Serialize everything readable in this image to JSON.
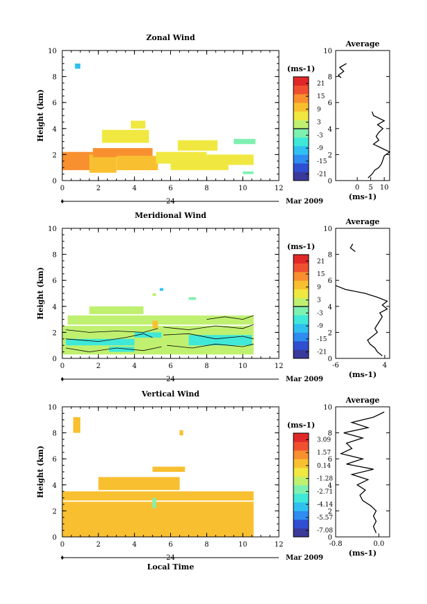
{
  "figure": {
    "month_label": "Mar 2009",
    "day_label": "24",
    "xlabel_bottom": "Local Time",
    "units": "(ms-1)"
  },
  "colors": {
    "scale": [
      "#3a3a9a",
      "#2f4fd0",
      "#2f8cf0",
      "#30c0f0",
      "#40e8d8",
      "#7ef0b0",
      "#c0f070",
      "#f0e840",
      "#f8c030",
      "#f89030",
      "#f05030",
      "#e02828"
    ],
    "line": "#000000"
  },
  "chart_data": [
    {
      "type": "heatmap",
      "title": "Zonal Wind",
      "ylabel": "Height (km)",
      "xlim": [
        0,
        12
      ],
      "ylim": [
        0,
        10
      ],
      "xticks": [
        0,
        2,
        4,
        6,
        8,
        10,
        12
      ],
      "yticks": [
        0,
        2,
        4,
        6,
        8,
        10
      ],
      "colorbar": {
        "label": "(ms-1)",
        "ticks": [
          "21",
          "15",
          "9",
          "3",
          "-3",
          "-9",
          "-15",
          "-21"
        ],
        "vmin": -24,
        "vmax": 24,
        "zero_line": 0
      },
      "patches": [
        {
          "x0": 0.7,
          "x1": 1.0,
          "y0": 8.6,
          "y1": 9.0,
          "v": -10
        },
        {
          "x0": 0.0,
          "x1": 2.0,
          "y0": 0.8,
          "y1": 2.2,
          "v": 12
        },
        {
          "x0": 1.5,
          "x1": 3.0,
          "y0": 0.6,
          "y1": 2.0,
          "v": 10
        },
        {
          "x0": 1.7,
          "x1": 5.0,
          "y0": 1.8,
          "y1": 2.5,
          "v": 14
        },
        {
          "x0": 3.0,
          "x1": 5.3,
          "y0": 0.8,
          "y1": 1.9,
          "v": 9
        },
        {
          "x0": 2.2,
          "x1": 4.8,
          "y0": 2.9,
          "y1": 3.9,
          "v": 6
        },
        {
          "x0": 5.2,
          "x1": 8.0,
          "y0": 1.3,
          "y1": 2.2,
          "v": 6
        },
        {
          "x0": 6.0,
          "x1": 9.2,
          "y0": 0.8,
          "y1": 1.6,
          "v": 5
        },
        {
          "x0": 8.0,
          "x1": 10.6,
          "y0": 1.2,
          "y1": 2.0,
          "v": 4
        },
        {
          "x0": 6.4,
          "x1": 8.6,
          "y0": 2.3,
          "y1": 3.1,
          "v": 5
        },
        {
          "x0": 9.5,
          "x1": 10.7,
          "y0": 2.8,
          "y1": 3.2,
          "v": -2
        },
        {
          "x0": 3.8,
          "x1": 4.6,
          "y0": 4.0,
          "y1": 4.6,
          "v": 6
        },
        {
          "x0": 10.0,
          "x1": 10.6,
          "y0": 0.5,
          "y1": 0.7,
          "v": -3
        }
      ],
      "average_profile": {
        "title": "Average",
        "xlabel": "(ms-1)",
        "xlim": [
          -8,
          12
        ],
        "xticks": [
          0,
          5,
          10
        ],
        "ylim": [
          0,
          10
        ],
        "z": [
          0.2,
          0.5,
          0.8,
          1.0,
          1.3,
          1.6,
          1.9,
          2.2,
          2.5,
          2.8,
          3.1,
          3.4,
          3.7,
          4.0,
          4.3,
          4.6,
          5.0,
          5.3,
          7.9,
          8.1,
          8.4,
          8.7,
          9.0
        ],
        "u": [
          4.0,
          5.5,
          6.5,
          8.0,
          9.0,
          9.5,
          10.0,
          12.0,
          9.0,
          6.0,
          8.0,
          7.0,
          8.0,
          9.5,
          7.5,
          10.0,
          6.0,
          5.5,
          -6.0,
          -7.0,
          -5.0,
          -6.5,
          -4.0
        ]
      }
    },
    {
      "type": "heatmap",
      "title": "Meridional Wind",
      "ylabel": "Height (km)",
      "xlim": [
        0,
        12
      ],
      "ylim": [
        0,
        10
      ],
      "xticks": [
        0,
        2,
        4,
        6,
        8,
        10,
        12
      ],
      "yticks": [
        0,
        2,
        4,
        6,
        8,
        10
      ],
      "colorbar": {
        "label": "(ms-1)",
        "ticks": [
          "21",
          "15",
          "9",
          "3",
          "-3",
          "-9",
          "-15",
          "-21"
        ],
        "vmin": -24,
        "vmax": 24,
        "zero_line": 0
      },
      "patches": [
        {
          "x0": 0.0,
          "x1": 10.6,
          "y0": 0.3,
          "y1": 2.5,
          "v": 2
        },
        {
          "x0": 0.3,
          "x1": 10.6,
          "y0": 2.6,
          "y1": 3.3,
          "v": 3
        },
        {
          "x0": 1.5,
          "x1": 4.5,
          "y0": 3.4,
          "y1": 4.0,
          "v": 3
        },
        {
          "x0": 0.2,
          "x1": 4.0,
          "y0": 1.0,
          "y1": 1.5,
          "v": -6
        },
        {
          "x0": 4.0,
          "x1": 5.5,
          "y0": 1.6,
          "y1": 2.0,
          "v": -8
        },
        {
          "x0": 7.0,
          "x1": 10.5,
          "y0": 1.0,
          "y1": 1.8,
          "v": -8
        },
        {
          "x0": 2.6,
          "x1": 4.0,
          "y0": 0.5,
          "y1": 0.9,
          "v": -5
        },
        {
          "x0": 5.0,
          "x1": 5.3,
          "y0": 2.3,
          "y1": 2.9,
          "v": 10
        },
        {
          "x0": 5.4,
          "x1": 5.6,
          "y0": 5.2,
          "y1": 5.4,
          "v": -10
        },
        {
          "x0": 5.0,
          "x1": 5.2,
          "y0": 4.8,
          "y1": 5.0,
          "v": 3
        },
        {
          "x0": 7.0,
          "x1": 7.4,
          "y0": 4.5,
          "y1": 4.7,
          "v": -2
        }
      ],
      "contours": [
        [
          [
            0.2,
            2.2
          ],
          [
            1.5,
            2.0
          ],
          [
            3.0,
            2.1
          ],
          [
            4.5,
            2.0
          ],
          [
            5.3,
            2.3
          ]
        ],
        [
          [
            0.2,
            1.5
          ],
          [
            2.0,
            1.3
          ],
          [
            3.5,
            1.6
          ],
          [
            4.5,
            1.9
          ],
          [
            5.0,
            1.6
          ]
        ],
        [
          [
            0.2,
            0.8
          ],
          [
            1.5,
            0.5
          ],
          [
            3.0,
            0.8
          ],
          [
            4.5,
            0.6
          ],
          [
            5.5,
            0.9
          ]
        ],
        [
          [
            5.6,
            2.4
          ],
          [
            7.0,
            2.2
          ],
          [
            8.5,
            2.5
          ],
          [
            10.0,
            2.3
          ],
          [
            10.6,
            2.6
          ]
        ],
        [
          [
            5.6,
            1.8
          ],
          [
            7.0,
            1.9
          ],
          [
            8.5,
            1.5
          ],
          [
            10.0,
            1.7
          ],
          [
            10.6,
            1.5
          ]
        ],
        [
          [
            5.8,
            1.0
          ],
          [
            7.2,
            0.8
          ],
          [
            8.5,
            1.1
          ],
          [
            10.0,
            0.9
          ],
          [
            10.6,
            1.1
          ]
        ],
        [
          [
            8.0,
            3.0
          ],
          [
            9.0,
            3.2
          ],
          [
            10.0,
            3.0
          ],
          [
            10.6,
            3.3
          ]
        ]
      ],
      "average_profile": {
        "title": "Average",
        "xlabel": "(ms-1)",
        "xlim": [
          -6,
          5
        ],
        "xticks": [
          -6,
          4
        ],
        "ylim": [
          0,
          10
        ],
        "z": [
          0.2,
          0.5,
          0.8,
          1.1,
          1.4,
          1.7,
          2.0,
          2.3,
          2.6,
          2.9,
          3.2,
          3.5,
          3.8,
          4.1,
          4.4,
          4.7,
          5.0,
          5.3,
          5.6,
          8.2,
          8.5,
          8.8
        ],
        "u": [
          3.5,
          2.5,
          2.0,
          1.0,
          0.5,
          1.5,
          2.5,
          2.0,
          2.5,
          3.0,
          3.5,
          3.0,
          4.5,
          3.5,
          4.5,
          2.5,
          0.0,
          -4.0,
          -6.0,
          -2.0,
          -3.0,
          -2.5
        ]
      }
    },
    {
      "type": "heatmap",
      "title": "Vertical Wind",
      "ylabel": "Height (km)",
      "xlabel": "Local Time",
      "xlim": [
        0,
        12
      ],
      "ylim": [
        0,
        10
      ],
      "xticks": [
        0,
        2,
        4,
        6,
        8,
        10,
        12
      ],
      "yticks": [
        0,
        2,
        4,
        6,
        8,
        10
      ],
      "colorbar": {
        "label": "(ms-1)",
        "ticks": [
          "3.09",
          "1.57",
          "0.14",
          "-1.28",
          "-2.71",
          "-4.14",
          "-5.57",
          "-7.08"
        ],
        "vmin": -7.8,
        "vmax": 3.8,
        "zero_line": null
      },
      "patches": [
        {
          "x0": 0.0,
          "x1": 10.6,
          "y0": 0.0,
          "y1": 2.7,
          "v": 0.4
        },
        {
          "x0": 0.0,
          "x1": 10.6,
          "y0": 2.8,
          "y1": 3.5,
          "v": 0.5
        },
        {
          "x0": 2.0,
          "x1": 6.5,
          "y0": 3.6,
          "y1": 4.6,
          "v": 0.3
        },
        {
          "x0": 5.0,
          "x1": 6.8,
          "y0": 5.0,
          "y1": 5.4,
          "v": 0.2
        },
        {
          "x0": 0.6,
          "x1": 1.0,
          "y0": 8.0,
          "y1": 9.2,
          "v": 0.5
        },
        {
          "x0": 6.5,
          "x1": 6.7,
          "y0": 7.8,
          "y1": 8.2,
          "v": 0.4
        },
        {
          "x0": 5.0,
          "x1": 5.2,
          "y0": 2.2,
          "y1": 3.0,
          "v": -2.5
        }
      ],
      "average_profile": {
        "title": "Average",
        "xlabel": "(ms-1)",
        "xlim": [
          -0.8,
          0.2
        ],
        "xticks": [
          -0.8,
          0.0
        ],
        "xticklabels": [
          "-0.8",
          "0.0"
        ],
        "ylim": [
          0,
          10
        ],
        "z": [
          0.3,
          0.8,
          1.2,
          1.6,
          2.0,
          2.4,
          2.8,
          3.2,
          3.6,
          4.0,
          4.4,
          4.8,
          5.2,
          5.6,
          6.0,
          6.4,
          6.8,
          7.2,
          7.6,
          8.0,
          8.4,
          8.8,
          9.2,
          9.6
        ],
        "u": [
          -0.05,
          -0.1,
          -0.05,
          -0.1,
          -0.05,
          -0.15,
          -0.3,
          -0.35,
          -0.25,
          -0.4,
          -0.2,
          -0.5,
          -0.1,
          -0.6,
          -0.3,
          -0.7,
          -0.5,
          -0.6,
          -0.3,
          -0.65,
          -0.2,
          -0.5,
          -0.1,
          0.1
        ]
      }
    }
  ]
}
